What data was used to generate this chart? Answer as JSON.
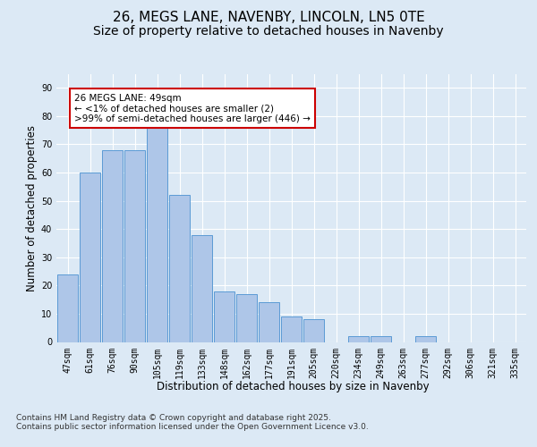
{
  "title_line1": "26, MEGS LANE, NAVENBY, LINCOLN, LN5 0TE",
  "title_line2": "Size of property relative to detached houses in Navenby",
  "xlabel": "Distribution of detached houses by size in Navenby",
  "ylabel": "Number of detached properties",
  "categories": [
    "47sqm",
    "61sqm",
    "76sqm",
    "90sqm",
    "105sqm",
    "119sqm",
    "133sqm",
    "148sqm",
    "162sqm",
    "177sqm",
    "191sqm",
    "205sqm",
    "220sqm",
    "234sqm",
    "249sqm",
    "263sqm",
    "277sqm",
    "292sqm",
    "306sqm",
    "321sqm",
    "335sqm"
  ],
  "values": [
    24,
    60,
    68,
    68,
    77,
    52,
    38,
    18,
    17,
    14,
    9,
    8,
    0,
    2,
    2,
    0,
    2,
    0,
    0,
    0,
    0
  ],
  "bar_color": "#aec6e8",
  "bar_edge_color": "#5b9bd5",
  "annotation_text": "26 MEGS LANE: 49sqm\n← <1% of detached houses are smaller (2)\n>99% of semi-detached houses are larger (446) →",
  "annotation_box_color": "#ffffff",
  "annotation_box_edge_color": "#cc0000",
  "ylim": [
    0,
    95
  ],
  "yticks": [
    0,
    10,
    20,
    30,
    40,
    50,
    60,
    70,
    80,
    90
  ],
  "background_color": "#dce9f5",
  "plot_bg_color": "#dce9f5",
  "grid_color": "#ffffff",
  "footer_text": "Contains HM Land Registry data © Crown copyright and database right 2025.\nContains public sector information licensed under the Open Government Licence v3.0.",
  "title_fontsize": 11,
  "subtitle_fontsize": 10,
  "axis_label_fontsize": 8.5,
  "tick_fontsize": 7,
  "annotation_fontsize": 7.5,
  "footer_fontsize": 6.5
}
